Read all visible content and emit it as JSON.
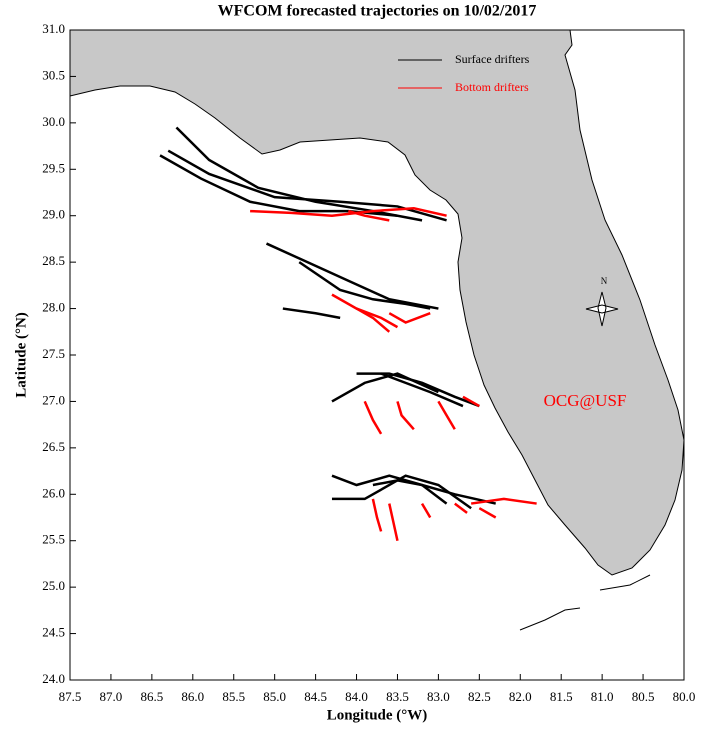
{
  "chart_data": {
    "type": "trajectory-map",
    "title": "WFCOM forecasted trajectories on 10/02/2017",
    "x_label": "Longitude (°W)",
    "y_label": "Latitude (°N)",
    "xlim": [
      87.5,
      80
    ],
    "ylim": [
      24,
      31
    ],
    "xticks": [
      87.5,
      {
        "value": 87,
        "label": "87.0"
      },
      86.5,
      {
        "value": 86,
        "label": "86.0"
      },
      85.5,
      {
        "value": 85,
        "label": "85.0"
      },
      84.5,
      {
        "value": 84,
        "label": "84.0"
      },
      83.5,
      {
        "value": 83,
        "label": "83.0"
      },
      82.5,
      {
        "value": 82,
        "label": "82.0"
      },
      81.5,
      {
        "value": 81,
        "label": "81.0"
      },
      80.5,
      {
        "value": 80,
        "label": "80.0"
      }
    ],
    "yticks": [
      {
        "value": 24,
        "label": "24.0"
      },
      24.5,
      {
        "value": 25,
        "label": "25.0"
      },
      25.5,
      {
        "value": 26,
        "label": "26.0"
      },
      26.5,
      {
        "value": 27,
        "label": "27.0"
      },
      27.5,
      {
        "value": 28,
        "label": "28.0"
      },
      28.5,
      {
        "value": 29,
        "label": "29.0"
      },
      29.5,
      {
        "value": 30,
        "label": "30.0"
      },
      30.5,
      {
        "value": 31,
        "label": "31.0"
      }
    ],
    "annotations": [
      "OCG@USF",
      "N"
    ],
    "series": [
      {
        "name": "Surface drifters",
        "color": "#000000",
        "tracks": [
          {
            "x": [
              86.2,
              85.8,
              85.2,
              84.5,
              83.8,
              83.2
            ],
            "y": [
              29.95,
              29.6,
              29.3,
              29.15,
              29.05,
              28.95
            ]
          },
          {
            "x": [
              86.4,
              85.9,
              85.3,
              84.7,
              84.1,
              83.5
            ],
            "y": [
              29.65,
              29.4,
              29.15,
              29.05,
              29.05,
              29.0
            ]
          },
          {
            "x": [
              86.3,
              85.8,
              85.0,
              84.2,
              83.5,
              82.9
            ],
            "y": [
              29.7,
              29.45,
              29.2,
              29.15,
              29.1,
              28.95
            ]
          },
          {
            "x": [
              85.1,
              84.6,
              84.1,
              83.6,
              83.0
            ],
            "y": [
              28.7,
              28.5,
              28.3,
              28.1,
              28.0
            ]
          },
          {
            "x": [
              84.7,
              84.2,
              83.8,
              83.4,
              83.1
            ],
            "y": [
              28.5,
              28.2,
              28.1,
              28.05,
              28.0
            ]
          },
          {
            "x": [
              84.9,
              84.5,
              84.2
            ],
            "y": [
              28.0,
              27.95,
              27.9
            ]
          },
          {
            "x": [
              84.0,
              83.6,
              83.2,
              82.8,
              82.5
            ],
            "y": [
              27.3,
              27.3,
              27.2,
              27.05,
              26.95
            ]
          },
          {
            "x": [
              84.3,
              83.9,
              83.5,
              83.0
            ],
            "y": [
              27.0,
              27.2,
              27.3,
              27.1
            ]
          },
          {
            "x": [
              83.7,
              83.4,
              83.1,
              82.7
            ],
            "y": [
              27.3,
              27.2,
              27.1,
              26.95
            ]
          },
          {
            "x": [
              84.3,
              84.0,
              83.6,
              83.2,
              82.8,
              82.3
            ],
            "y": [
              26.2,
              26.1,
              26.2,
              26.1,
              26.0,
              25.9
            ]
          },
          {
            "x": [
              84.3,
              83.9,
              83.4,
              83.0,
              82.6
            ],
            "y": [
              25.95,
              25.95,
              26.2,
              26.1,
              25.85
            ]
          },
          {
            "x": [
              83.8,
              83.5,
              83.2,
              82.9
            ],
            "y": [
              26.1,
              26.15,
              26.1,
              25.9
            ]
          }
        ]
      },
      {
        "name": "Bottom drifters",
        "color": "#ff0000",
        "tracks": [
          {
            "x": [
              85.3,
              84.8,
              84.3,
              83.8,
              83.3,
              82.9
            ],
            "y": [
              29.05,
              29.03,
              29.0,
              29.05,
              29.08,
              29.0
            ]
          },
          {
            "x": [
              84.1,
              83.9,
              83.6
            ],
            "y": [
              29.05,
              29.0,
              28.95
            ]
          },
          {
            "x": [
              84.3,
              84.0,
              83.7,
              83.5
            ],
            "y": [
              28.15,
              28.0,
              27.9,
              27.8
            ]
          },
          {
            "x": [
              84.0,
              83.8,
              83.6
            ],
            "y": [
              28.0,
              27.9,
              27.75
            ]
          },
          {
            "x": [
              83.6,
              83.4,
              83.1
            ],
            "y": [
              27.95,
              27.85,
              27.95
            ]
          },
          {
            "x": [
              83.9,
              83.8,
              83.7
            ],
            "y": [
              27.0,
              26.8,
              26.65
            ]
          },
          {
            "x": [
              83.5,
              83.45,
              83.3
            ],
            "y": [
              27.0,
              26.85,
              26.7
            ]
          },
          {
            "x": [
              83.0,
              82.9,
              82.8
            ],
            "y": [
              27.0,
              26.85,
              26.7
            ]
          },
          {
            "x": [
              82.7,
              82.5
            ],
            "y": [
              27.05,
              26.95
            ]
          },
          {
            "x": [
              83.8,
              83.75,
              83.7
            ],
            "y": [
              25.95,
              25.75,
              25.6
            ]
          },
          {
            "x": [
              83.6,
              83.55,
              83.5
            ],
            "y": [
              25.9,
              25.7,
              25.5
            ]
          },
          {
            "x": [
              83.2,
              83.1
            ],
            "y": [
              25.9,
              25.75
            ]
          },
          {
            "x": [
              82.8,
              82.65
            ],
            "y": [
              25.9,
              25.8
            ]
          },
          {
            "x": [
              82.5,
              82.3
            ],
            "y": [
              25.85,
              25.75
            ]
          },
          {
            "x": [
              82.6,
              82.2,
              81.8
            ],
            "y": [
              25.9,
              25.95,
              25.9
            ]
          }
        ]
      }
    ]
  }
}
